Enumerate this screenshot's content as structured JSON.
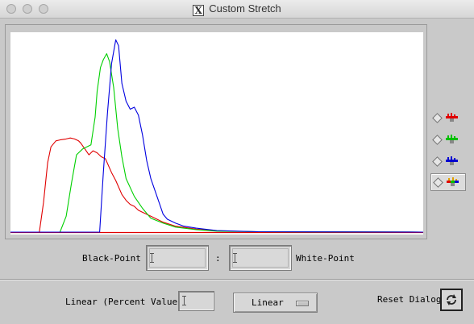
{
  "window": {
    "title": "Custom Stretch",
    "app_icon": "x11-logo-icon"
  },
  "colors": {
    "red": "#e00000",
    "green": "#00d000",
    "blue": "#0000e0"
  },
  "channels": [
    {
      "name": "red",
      "icon": "red-channel-icon",
      "active": false
    },
    {
      "name": "green",
      "icon": "green-channel-icon",
      "active": false
    },
    {
      "name": "blue",
      "icon": "blue-channel-icon",
      "active": false
    },
    {
      "name": "rgb",
      "icon": "rgb-channel-icon",
      "active": true
    }
  ],
  "chart_data": {
    "type": "line",
    "x_range": [
      0,
      100
    ],
    "y_range": [
      0,
      100
    ],
    "grid": false,
    "legend": "none",
    "series": [
      {
        "color": "#e00000",
        "x": [
          0,
          7.0,
          8.0,
          9.0,
          9.8,
          11.0,
          12.0,
          13.5,
          14.5,
          15.5,
          16.5,
          17.0,
          18.0,
          19.0,
          20.0,
          21.0,
          22.0,
          23.0,
          24.5,
          25.5,
          27.0,
          28.0,
          29.0,
          30.0,
          31.0,
          32.0,
          34.0,
          37.0,
          40.0,
          45.0,
          50.0,
          60.0,
          100
        ],
        "y": [
          0,
          0,
          15,
          35,
          43,
          46,
          46.5,
          47,
          47.5,
          47,
          46,
          45,
          42,
          39,
          41,
          40,
          38,
          37,
          30,
          26,
          19,
          16,
          14,
          13,
          11,
          10,
          8,
          5,
          3,
          1.5,
          0.6,
          0.2,
          0
        ]
      },
      {
        "color": "#00d000",
        "x": [
          0,
          12.0,
          13.5,
          14.8,
          16.0,
          17.5,
          19.5,
          20.5,
          21.0,
          21.8,
          22.5,
          23.3,
          24.0,
          25.0,
          26.0,
          27.0,
          28.0,
          30.0,
          32.0,
          34.0,
          37.0,
          40.0,
          45.0,
          50.0,
          60.0,
          100
        ],
        "y": [
          0,
          0,
          8,
          25,
          39,
          42,
          44,
          58,
          71,
          83,
          87,
          90,
          86,
          73,
          52,
          38,
          27,
          18,
          12,
          7,
          4.5,
          2.5,
          1.2,
          0.5,
          0.2,
          0
        ]
      },
      {
        "color": "#0000e0",
        "x": [
          0,
          21.6,
          22.5,
          23.5,
          24.5,
          25.5,
          26.2,
          27.0,
          28.0,
          29.0,
          30.0,
          31.0,
          32.0,
          33.0,
          34.0,
          35.0,
          36.0,
          37.0,
          38.0,
          40.0,
          42.0,
          45.0,
          50.0,
          55.0,
          60.0,
          100
        ],
        "y": [
          0,
          0,
          30,
          60,
          85,
          97,
          94,
          75,
          66,
          62,
          63,
          59,
          49,
          36,
          27,
          21,
          15,
          9,
          6.5,
          4.5,
          3,
          2,
          0.8,
          0.5,
          0.2,
          0
        ]
      }
    ]
  },
  "controls": {
    "black_point_label": "Black-Point",
    "black_point_value": "",
    "separator": ":",
    "white_point_label": "White-Point",
    "white_point_value": "",
    "linear_label": "Linear (Percent Value)",
    "linear_value": "",
    "stretch_type": "Linear",
    "reset_label": "Reset Dialog",
    "reset_icon": "refresh-icon"
  }
}
